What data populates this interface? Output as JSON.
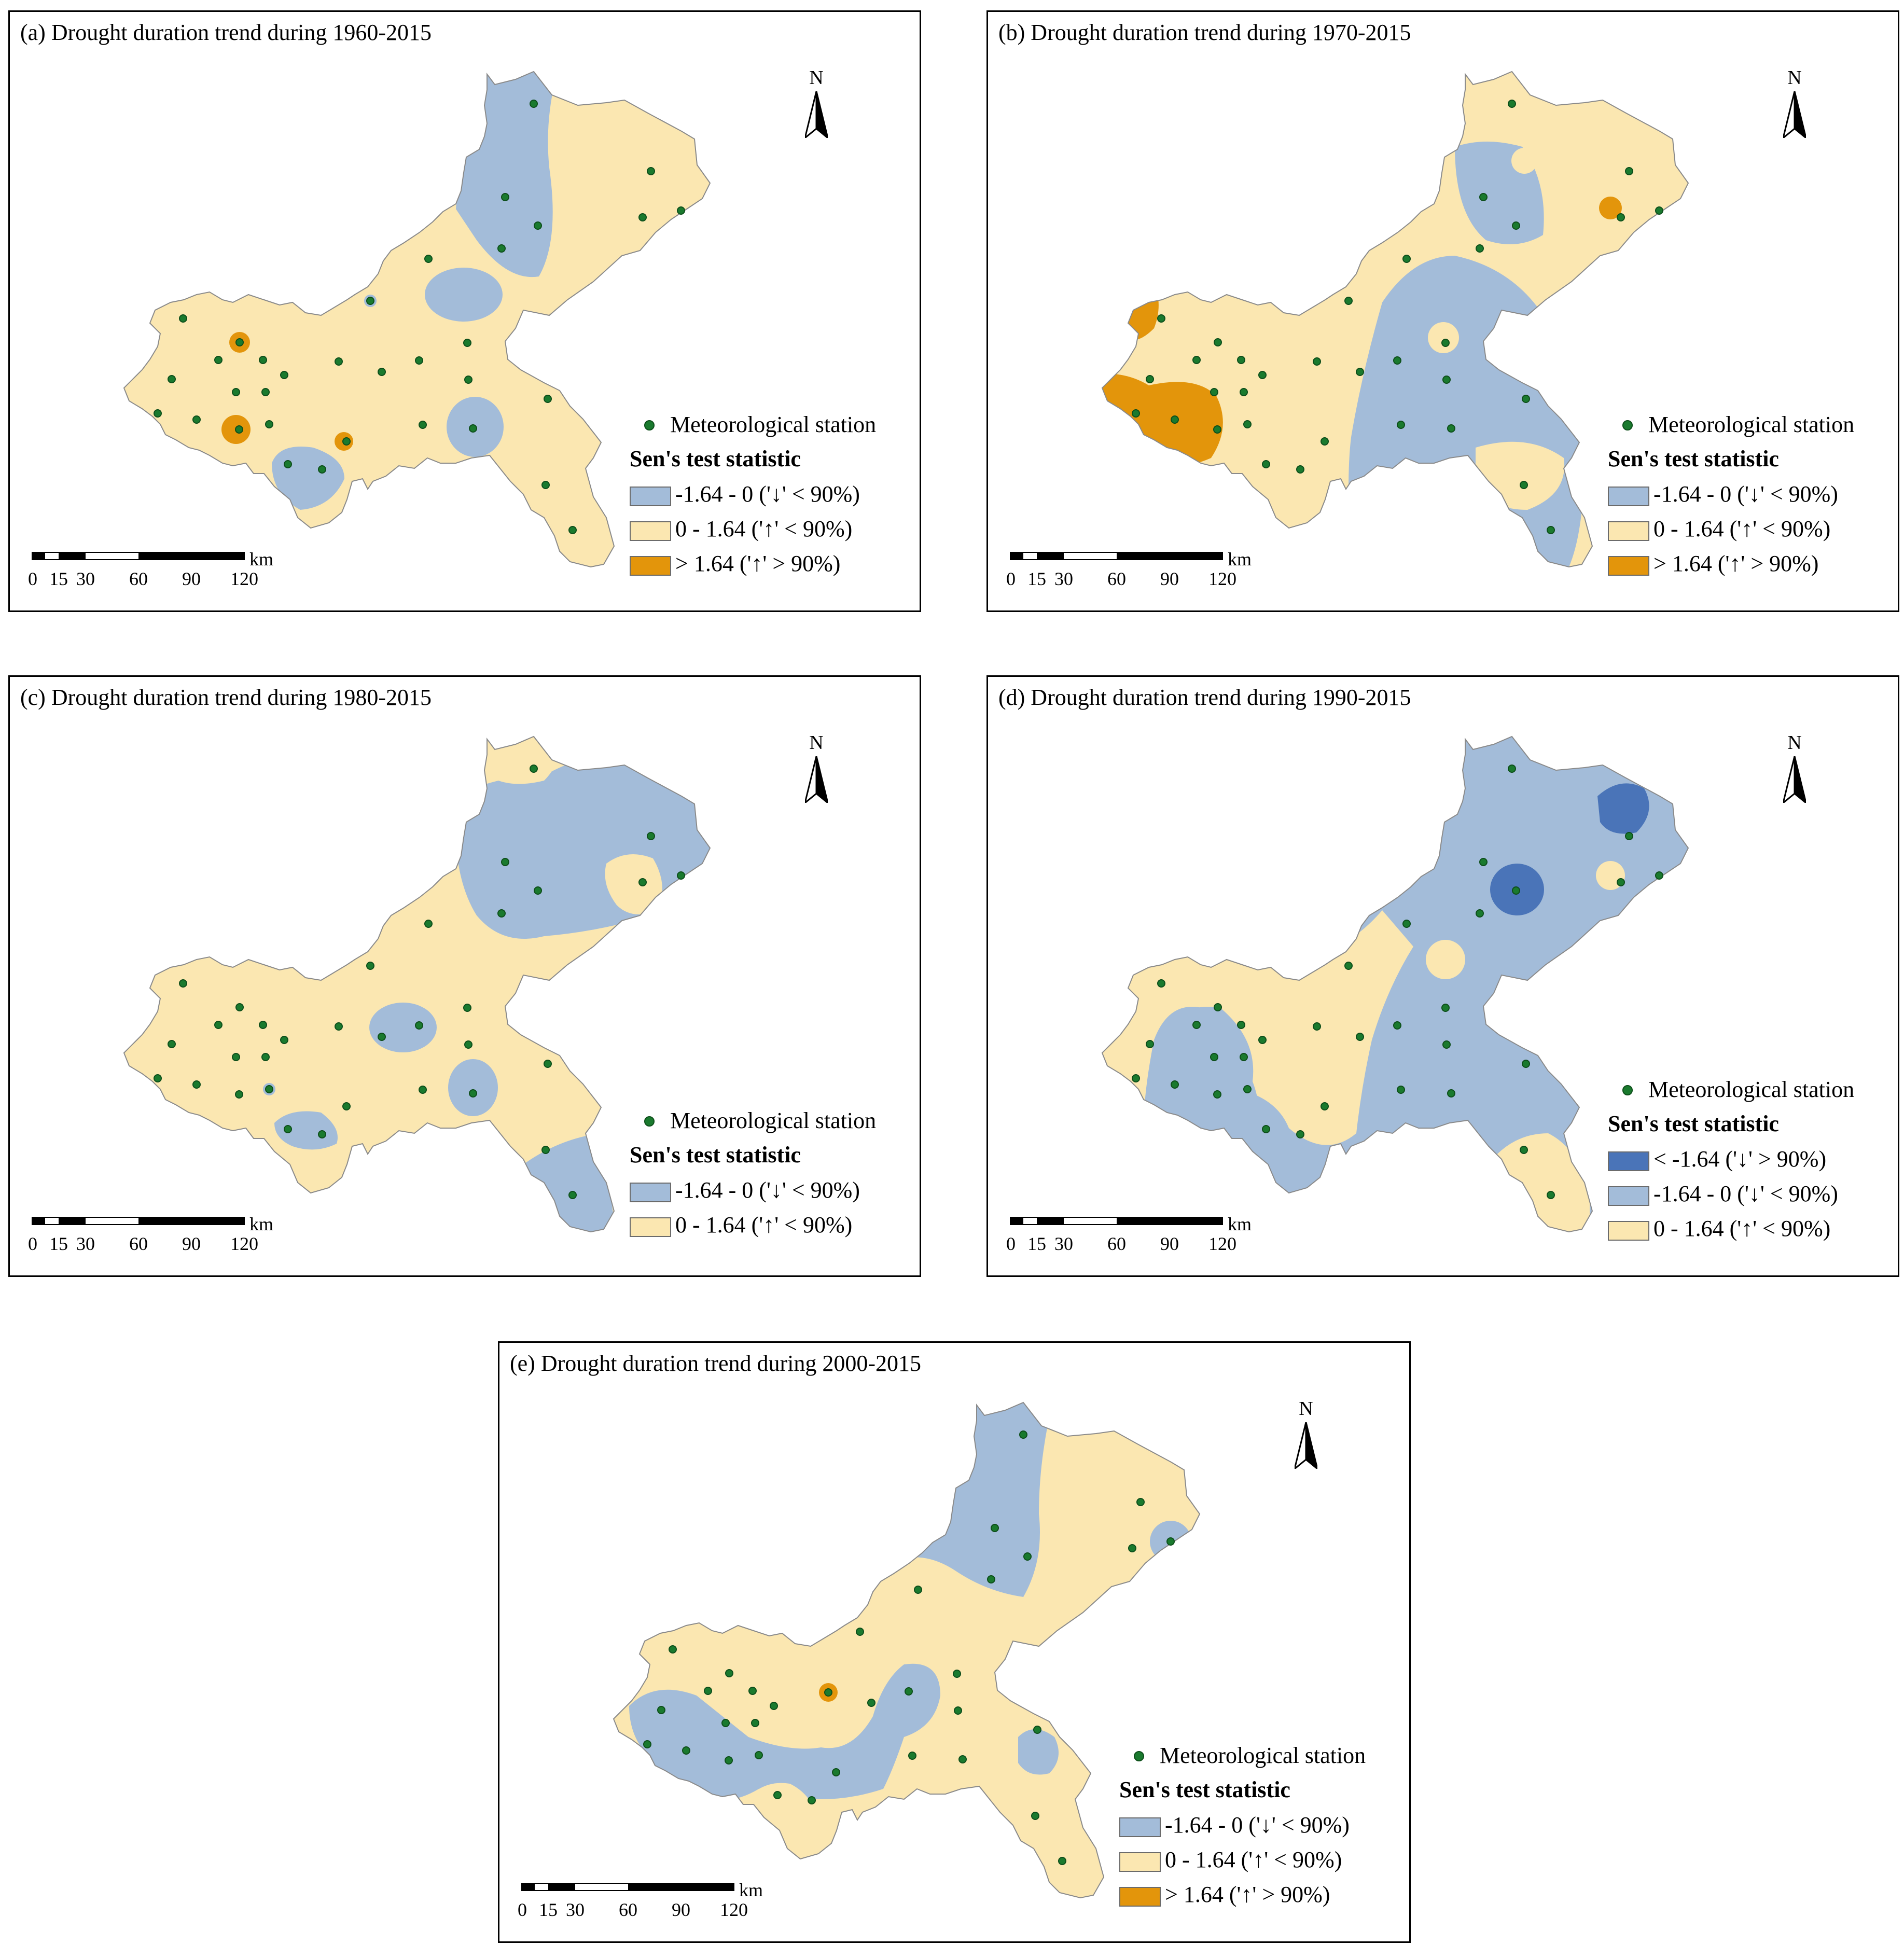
{
  "colors": {
    "strong_decrease": "#4a74b8",
    "decrease": "#a3bcd9",
    "increase": "#fbe7b1",
    "strong_increase": "#e3950b",
    "station": "#1a7a2e",
    "outline": "#8a8a8a"
  },
  "legend": {
    "station_label": "Meteorological station",
    "heading": "Sen's test statistic"
  },
  "scalebar": {
    "unit": "km",
    "ticks": [
      "0",
      "15",
      "30",
      "60",
      "90",
      "120"
    ]
  },
  "north_label": "N",
  "panels": [
    {
      "title": "(a) Drought duration trend during 1960-2015",
      "legend_items": [
        {
          "label": "-1.64 - 0 ('↓' < 90%)",
          "color": "#a3bcd9"
        },
        {
          "label": "0 - 1.64 ('↑' < 90%)",
          "color": "#fbe7b1"
        },
        {
          "label": "> 1.64 ('↑' > 90%)",
          "color": "#e3950b"
        }
      ]
    },
    {
      "title": "(b) Drought duration trend during 1970-2015",
      "legend_items": [
        {
          "label": "-1.64 - 0 ('↓' < 90%)",
          "color": "#a3bcd9"
        },
        {
          "label": "0 - 1.64 ('↑' < 90%)",
          "color": "#fbe7b1"
        },
        {
          "label": "> 1.64 ('↑' > 90%)",
          "color": "#e3950b"
        }
      ]
    },
    {
      "title": "(c) Drought duration trend during 1980-2015",
      "legend_items": [
        {
          "label": "-1.64 - 0 ('↓' < 90%)",
          "color": "#a3bcd9"
        },
        {
          "label": "0 - 1.64 ('↑' < 90%)",
          "color": "#fbe7b1"
        }
      ]
    },
    {
      "title": "(d) Drought duration trend during 1990-2015",
      "legend_items": [
        {
          "label": "< -1.64 ('↓' > 90%)",
          "color": "#4a74b8"
        },
        {
          "label": "-1.64 - 0 ('↓' < 90%)",
          "color": "#a3bcd9"
        },
        {
          "label": "0 - 1.64 ('↑' < 90%)",
          "color": "#fbe7b1"
        }
      ]
    },
    {
      "title": "(e) Drought duration trend during 2000-2015",
      "legend_items": [
        {
          "label": "-1.64 - 0 ('↓' < 90%)",
          "color": "#a3bcd9"
        },
        {
          "label": "0 - 1.64 ('↑' < 90%)",
          "color": "#fbe7b1"
        },
        {
          "label": "> 1.64 ('↑' > 90%)",
          "color": "#e3950b"
        }
      ]
    }
  ]
}
